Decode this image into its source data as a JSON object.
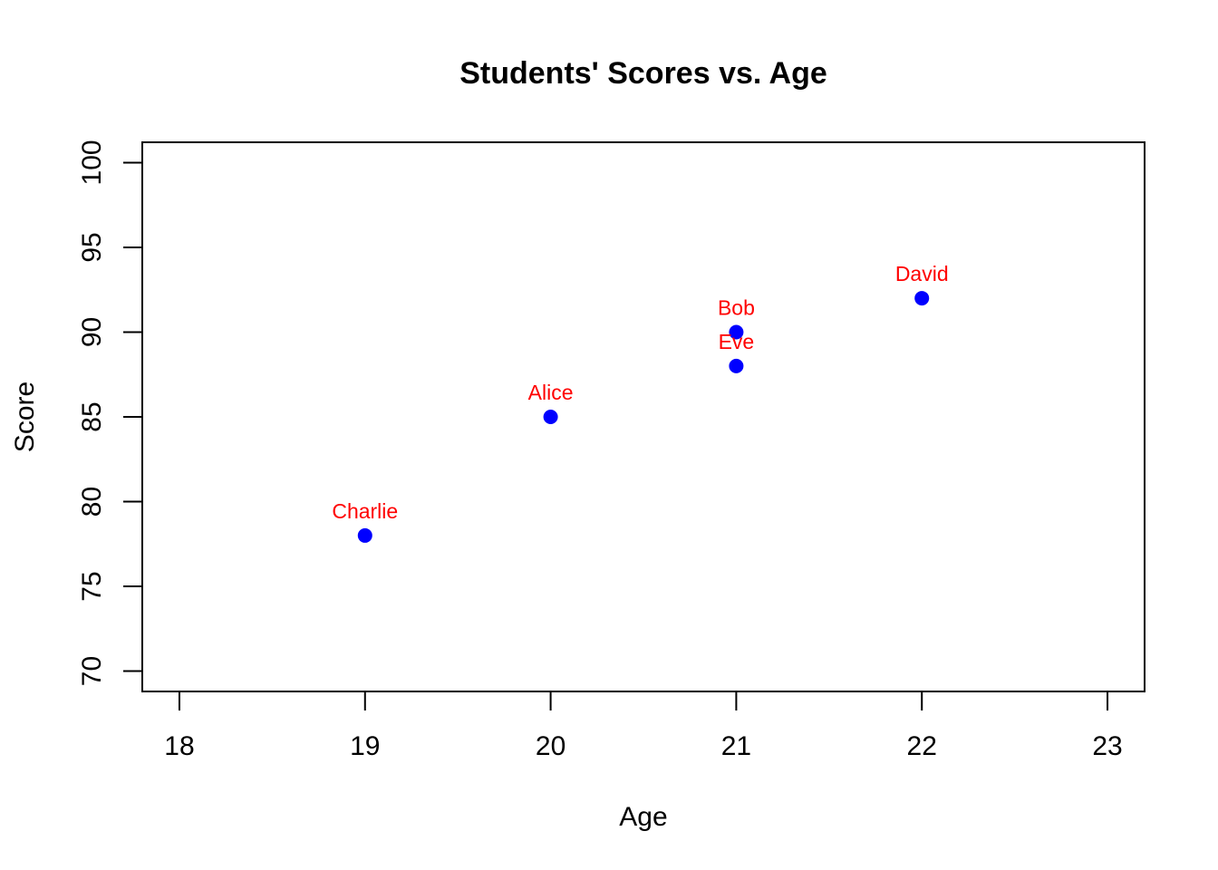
{
  "chart_data": {
    "type": "scatter",
    "title": "Students' Scores vs. Age",
    "xlabel": "Age",
    "ylabel": "Score",
    "xlim": [
      17.8,
      23.2
    ],
    "ylim": [
      68.8,
      101.2
    ],
    "xticks": [
      18,
      19,
      20,
      21,
      22,
      23
    ],
    "yticks": [
      70,
      75,
      80,
      85,
      90,
      95,
      100
    ],
    "grid": false,
    "legend": "none",
    "point_color": "#0000ff",
    "label_color": "#ff0000",
    "points": [
      {
        "label": "Alice",
        "x": 20,
        "y": 85
      },
      {
        "label": "Bob",
        "x": 21,
        "y": 90
      },
      {
        "label": "Charlie",
        "x": 19,
        "y": 78
      },
      {
        "label": "David",
        "x": 22,
        "y": 92
      },
      {
        "label": "Eve",
        "x": 21,
        "y": 88
      }
    ]
  }
}
